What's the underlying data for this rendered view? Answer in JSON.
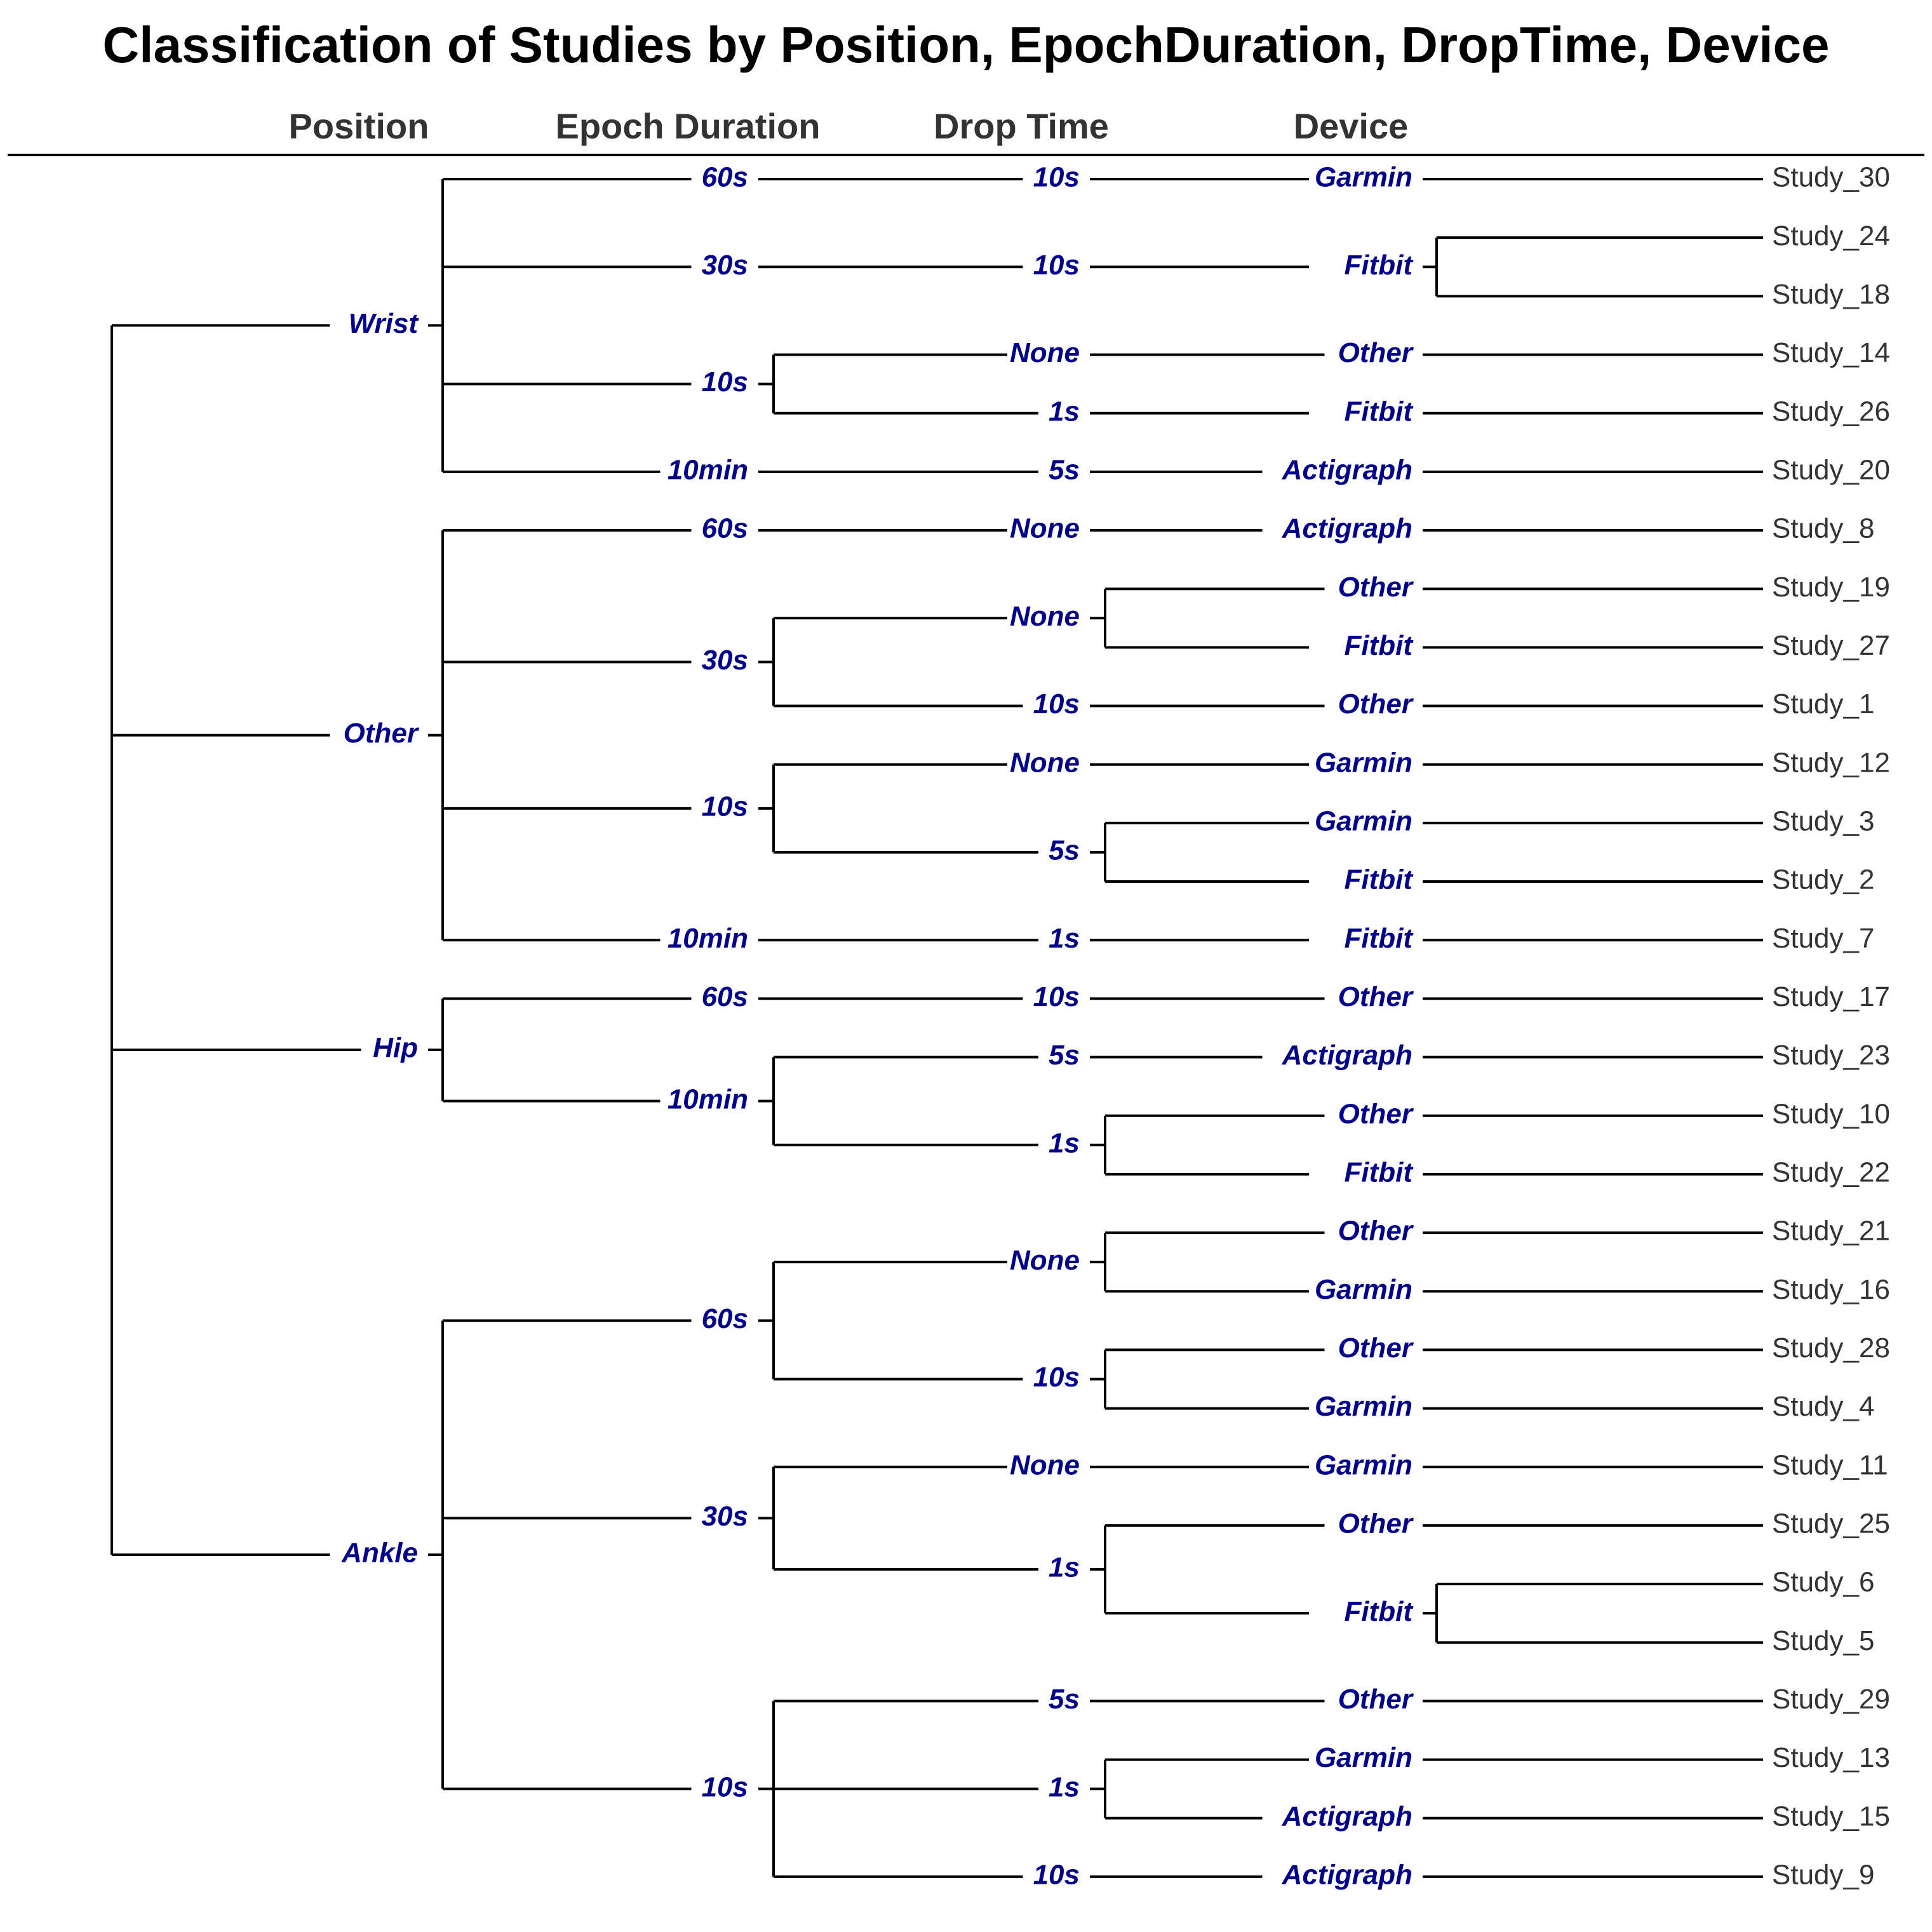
{
  "title": "Classification of Studies by Position, EpochDuration, DropTime, Device",
  "columns": [
    "Position",
    "Epoch Duration",
    "Drop Time",
    "Device"
  ],
  "tree": [
    {
      "label": "Wrist",
      "children": [
        {
          "label": "60s",
          "children": [
            {
              "label": "10s",
              "children": [
                {
                  "label": "Garmin",
                  "studies": [
                    "Study_30"
                  ]
                }
              ]
            }
          ]
        },
        {
          "label": "30s",
          "children": [
            {
              "label": "10s",
              "children": [
                {
                  "label": "Fitbit",
                  "studies": [
                    "Study_24",
                    "Study_18"
                  ]
                }
              ]
            }
          ]
        },
        {
          "label": "10s",
          "children": [
            {
              "label": "None",
              "children": [
                {
                  "label": "Other",
                  "studies": [
                    "Study_14"
                  ]
                }
              ]
            },
            {
              "label": "1s",
              "children": [
                {
                  "label": "Fitbit",
                  "studies": [
                    "Study_26"
                  ]
                }
              ]
            }
          ]
        },
        {
          "label": "10min",
          "children": [
            {
              "label": "5s",
              "children": [
                {
                  "label": "Actigraph",
                  "studies": [
                    "Study_20"
                  ]
                }
              ]
            }
          ]
        }
      ]
    },
    {
      "label": "Other",
      "children": [
        {
          "label": "60s",
          "children": [
            {
              "label": "None",
              "children": [
                {
                  "label": "Actigraph",
                  "studies": [
                    "Study_8"
                  ]
                }
              ]
            }
          ]
        },
        {
          "label": "30s",
          "children": [
            {
              "label": "None",
              "children": [
                {
                  "label": "Other",
                  "studies": [
                    "Study_19"
                  ]
                },
                {
                  "label": "Fitbit",
                  "studies": [
                    "Study_27"
                  ]
                }
              ]
            },
            {
              "label": "10s",
              "children": [
                {
                  "label": "Other",
                  "studies": [
                    "Study_1"
                  ]
                }
              ]
            }
          ]
        },
        {
          "label": "10s",
          "children": [
            {
              "label": "None",
              "children": [
                {
                  "label": "Garmin",
                  "studies": [
                    "Study_12"
                  ]
                }
              ]
            },
            {
              "label": "5s",
              "children": [
                {
                  "label": "Garmin",
                  "studies": [
                    "Study_3"
                  ]
                },
                {
                  "label": "Fitbit",
                  "studies": [
                    "Study_2"
                  ]
                }
              ]
            }
          ]
        },
        {
          "label": "10min",
          "children": [
            {
              "label": "1s",
              "children": [
                {
                  "label": "Fitbit",
                  "studies": [
                    "Study_7"
                  ]
                }
              ]
            }
          ]
        }
      ]
    },
    {
      "label": "Hip",
      "children": [
        {
          "label": "60s",
          "children": [
            {
              "label": "10s",
              "children": [
                {
                  "label": "Other",
                  "studies": [
                    "Study_17"
                  ]
                }
              ]
            }
          ]
        },
        {
          "label": "10min",
          "children": [
            {
              "label": "5s",
              "children": [
                {
                  "label": "Actigraph",
                  "studies": [
                    "Study_23"
                  ]
                }
              ]
            },
            {
              "label": "1s",
              "children": [
                {
                  "label": "Other",
                  "studies": [
                    "Study_10"
                  ]
                },
                {
                  "label": "Fitbit",
                  "studies": [
                    "Study_22"
                  ]
                }
              ]
            }
          ]
        }
      ]
    },
    {
      "label": "Ankle",
      "children": [
        {
          "label": "60s",
          "children": [
            {
              "label": "None",
              "children": [
                {
                  "label": "Other",
                  "studies": [
                    "Study_21"
                  ]
                },
                {
                  "label": "Garmin",
                  "studies": [
                    "Study_16"
                  ]
                }
              ]
            },
            {
              "label": "10s",
              "children": [
                {
                  "label": "Other",
                  "studies": [
                    "Study_28"
                  ]
                },
                {
                  "label": "Garmin",
                  "studies": [
                    "Study_4"
                  ]
                }
              ]
            }
          ]
        },
        {
          "label": "30s",
          "children": [
            {
              "label": "None",
              "children": [
                {
                  "label": "Garmin",
                  "studies": [
                    "Study_11"
                  ]
                }
              ]
            },
            {
              "label": "1s",
              "children": [
                {
                  "label": "Other",
                  "studies": [
                    "Study_25"
                  ]
                },
                {
                  "label": "Fitbit",
                  "studies": [
                    "Study_6",
                    "Study_5"
                  ]
                }
              ]
            }
          ]
        },
        {
          "label": "10s",
          "children": [
            {
              "label": "5s",
              "children": [
                {
                  "label": "Other",
                  "studies": [
                    "Study_29"
                  ]
                }
              ]
            },
            {
              "label": "1s",
              "children": [
                {
                  "label": "Garmin",
                  "studies": [
                    "Study_13"
                  ]
                },
                {
                  "label": "Actigraph",
                  "studies": [
                    "Study_15"
                  ]
                }
              ]
            },
            {
              "label": "10s",
              "children": [
                {
                  "label": "Actigraph",
                  "studies": [
                    "Study_9"
                  ]
                }
              ]
            }
          ]
        }
      ]
    }
  ]
}
